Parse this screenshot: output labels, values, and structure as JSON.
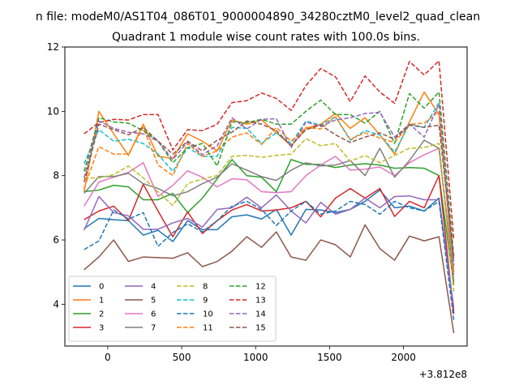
{
  "chart_data": {
    "type": "line",
    "suptitle": "n file: modeM0/AS1T04_086T01_9000004890_34280cztM0_level2_quad_clean",
    "title": "Quadrant 1 module wise count rates with 100.0s bins.",
    "xlabel": "",
    "ylabel": "",
    "x_offset_label": "+3.812e8",
    "xlim": [
      -290,
      2430
    ],
    "ylim": [
      2.7,
      12
    ],
    "xticks": [
      0,
      500,
      1000,
      1500,
      2000
    ],
    "yticks": [
      4,
      6,
      8,
      10,
      12
    ],
    "x": [
      -160,
      -60,
      40,
      140,
      240,
      340,
      440,
      540,
      640,
      740,
      840,
      940,
      1040,
      1140,
      1240,
      1340,
      1440,
      1540,
      1640,
      1740,
      1840,
      1940,
      2040,
      2140,
      2240,
      2340
    ],
    "legend_position": "lower-left",
    "series": [
      {
        "name": "0",
        "color": "#1f77b4",
        "dash": "solid",
        "values": [
          6.35,
          6.67,
          6.63,
          6.6,
          6.15,
          6.3,
          5.95,
          6.6,
          6.32,
          6.32,
          6.72,
          6.78,
          6.65,
          6.95,
          6.15,
          6.95,
          6.93,
          6.85,
          6.95,
          7.2,
          7.55,
          7.0,
          7.05,
          6.9,
          7.3,
          3.8
        ]
      },
      {
        "name": "1",
        "color": "#ff7f0e",
        "dash": "solid",
        "values": [
          7.5,
          10.0,
          9.3,
          8.63,
          9.6,
          8.6,
          8.53,
          9.3,
          9.07,
          8.77,
          9.73,
          9.6,
          9.73,
          9.33,
          8.93,
          9.47,
          9.6,
          9.93,
          9.47,
          9.8,
          9.27,
          8.67,
          9.67,
          10.6,
          9.9,
          5.0
        ]
      },
      {
        "name": "2",
        "color": "#2ca02c",
        "dash": "solid",
        "values": [
          7.5,
          7.55,
          7.7,
          7.65,
          7.25,
          7.25,
          7.45,
          6.85,
          7.3,
          7.9,
          8.5,
          8.0,
          7.95,
          7.5,
          8.5,
          8.35,
          8.35,
          8.25,
          8.33,
          8.37,
          8.33,
          8.23,
          8.25,
          8.23,
          8.0,
          4.6
        ]
      },
      {
        "name": "3",
        "color": "#d62728",
        "dash": "solid",
        "values": [
          6.63,
          6.9,
          7.05,
          6.6,
          7.73,
          6.9,
          6.1,
          6.87,
          6.2,
          6.6,
          6.93,
          7.1,
          6.9,
          6.93,
          7.0,
          7.2,
          6.72,
          7.3,
          7.6,
          7.3,
          7.6,
          6.73,
          7.2,
          7.0,
          8.0,
          3.7
        ]
      },
      {
        "name": "4",
        "color": "#9467bd",
        "dash": "solid",
        "values": [
          6.3,
          7.35,
          6.85,
          6.75,
          6.33,
          6.33,
          6.53,
          6.67,
          6.4,
          6.95,
          7.0,
          7.33,
          7.0,
          7.4,
          6.9,
          6.53,
          7.17,
          6.8,
          6.95,
          7.3,
          7.0,
          7.35,
          7.37,
          7.25,
          7.25,
          3.9
        ]
      },
      {
        "name": "5",
        "color": "#8c564b",
        "dash": "solid",
        "values": [
          5.07,
          5.47,
          6.0,
          5.33,
          5.47,
          5.45,
          5.43,
          5.6,
          5.17,
          5.33,
          5.65,
          6.1,
          5.77,
          6.25,
          5.47,
          5.37,
          6.0,
          5.85,
          5.47,
          6.47,
          5.73,
          5.37,
          6.12,
          5.97,
          6.1,
          3.1
        ]
      },
      {
        "name": "6",
        "color": "#e377c2",
        "dash": "solid",
        "values": [
          7.05,
          7.8,
          7.95,
          8.1,
          8.4,
          7.35,
          7.7,
          8.15,
          7.95,
          7.65,
          7.9,
          7.87,
          7.5,
          7.47,
          7.5,
          8.0,
          8.33,
          8.6,
          8.17,
          8.2,
          8.27,
          8.0,
          8.4,
          8.65,
          8.85,
          4.9
        ]
      },
      {
        "name": "7",
        "color": "#7f7f7f",
        "dash": "solid",
        "values": [
          7.45,
          7.97,
          7.97,
          8.07,
          7.75,
          7.6,
          7.37,
          7.5,
          7.75,
          7.95,
          8.37,
          8.17,
          7.97,
          7.85,
          8.17,
          8.4,
          8.3,
          8.33,
          8.47,
          8.0,
          8.85,
          7.95,
          8.47,
          9.1,
          8.85,
          4.7
        ]
      },
      {
        "name": "8",
        "color": "#bcbd22",
        "dash": "dashed",
        "values": [
          7.93,
          7.93,
          8.03,
          8.3,
          7.93,
          7.5,
          7.07,
          7.75,
          7.9,
          8.0,
          8.6,
          8.63,
          8.57,
          8.63,
          8.67,
          9.15,
          8.93,
          9.0,
          8.45,
          8.63,
          8.4,
          8.63,
          8.85,
          8.87,
          9.0,
          4.4
        ]
      },
      {
        "name": "9",
        "color": "#17becf",
        "dash": "dashed",
        "values": [
          8.37,
          9.43,
          9.07,
          9.13,
          9.0,
          8.67,
          8.13,
          8.87,
          8.6,
          8.6,
          9.5,
          9.47,
          9.0,
          9.33,
          9.0,
          9.7,
          9.57,
          9.83,
          9.1,
          9.4,
          9.27,
          8.73,
          9.6,
          9.5,
          10.27,
          5.3
        ]
      },
      {
        "name": "10",
        "color": "#1f77b4",
        "dash": "dashed",
        "values": [
          5.7,
          5.97,
          6.93,
          6.65,
          6.85,
          5.8,
          6.23,
          6.5,
          6.25,
          6.6,
          7.05,
          7.2,
          6.95,
          6.45,
          6.9,
          7.2,
          6.8,
          6.9,
          7.2,
          7.1,
          6.8,
          7.2,
          7.0,
          6.9,
          7.2,
          3.5
        ]
      },
      {
        "name": "11",
        "color": "#ff7f0e",
        "dash": "dashed",
        "values": [
          7.6,
          8.9,
          8.67,
          8.67,
          9.5,
          8.33,
          8.0,
          9.0,
          8.6,
          8.77,
          9.2,
          9.33,
          8.97,
          9.5,
          9.07,
          9.5,
          9.45,
          9.83,
          9.13,
          9.33,
          9.17,
          9.03,
          9.6,
          9.63,
          10.0,
          5.0
        ]
      },
      {
        "name": "12",
        "color": "#2ca02c",
        "dash": "dashed",
        "values": [
          8.13,
          9.8,
          9.67,
          9.63,
          9.4,
          9.07,
          8.4,
          8.87,
          9.0,
          8.3,
          9.67,
          9.65,
          9.75,
          9.6,
          9.6,
          10.0,
          10.35,
          9.9,
          9.9,
          9.63,
          10.0,
          9.0,
          10.55,
          10.1,
          10.6,
          5.5
        ]
      },
      {
        "name": "13",
        "color": "#d62728",
        "dash": "dashed",
        "values": [
          9.3,
          9.65,
          9.75,
          9.73,
          9.9,
          9.9,
          8.8,
          9.43,
          9.4,
          9.6,
          10.27,
          10.33,
          10.57,
          10.4,
          10.03,
          10.8,
          11.33,
          11.07,
          10.3,
          11.1,
          10.6,
          10.25,
          11.55,
          11.13,
          11.57,
          6.0
        ]
      },
      {
        "name": "14",
        "color": "#9467bd",
        "dash": "dashed",
        "values": [
          7.93,
          9.7,
          9.47,
          9.35,
          9.3,
          9.07,
          8.5,
          9.05,
          8.65,
          8.93,
          9.8,
          9.45,
          9.75,
          9.77,
          8.87,
          9.67,
          9.53,
          9.73,
          9.8,
          9.93,
          9.97,
          9.2,
          9.6,
          9.2,
          10.23,
          5.2
        ]
      },
      {
        "name": "15",
        "color": "#8c564b",
        "dash": "dashed",
        "values": [
          7.8,
          9.6,
          9.43,
          9.27,
          9.5,
          9.07,
          8.67,
          9.07,
          8.77,
          9.1,
          9.35,
          9.7,
          9.6,
          9.4,
          8.93,
          9.43,
          9.57,
          9.27,
          9.03,
          9.2,
          9.33,
          9.13,
          9.57,
          9.5,
          9.57,
          5.4
        ]
      }
    ]
  }
}
